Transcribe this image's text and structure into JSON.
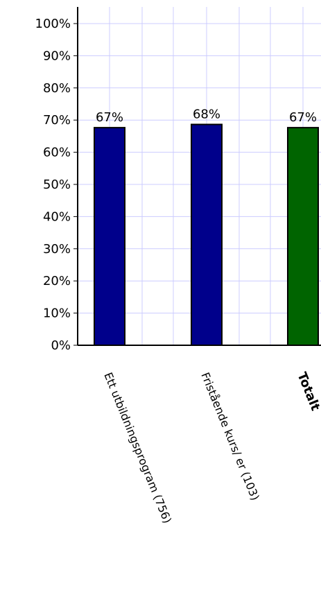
{
  "chart_data": {
    "type": "bar",
    "categories": [
      "Ett utbildningsprogram (756)",
      "Fristående kurs/ er (103)",
      "Totalt"
    ],
    "values": [
      67,
      68,
      67
    ],
    "data_labels": [
      "67%",
      "68%",
      "67%"
    ],
    "colors": [
      "#00008b",
      "#00008b",
      "#006400"
    ],
    "ylim": [
      0,
      100
    ],
    "yticks": [
      "0%",
      "10%",
      "20%",
      "30%",
      "40%",
      "50%",
      "60%",
      "70%",
      "80%",
      "90%",
      "100%"
    ],
    "grid": true,
    "grid_color": "#ccccff",
    "title": "",
    "xlabel": "",
    "ylabel": ""
  }
}
